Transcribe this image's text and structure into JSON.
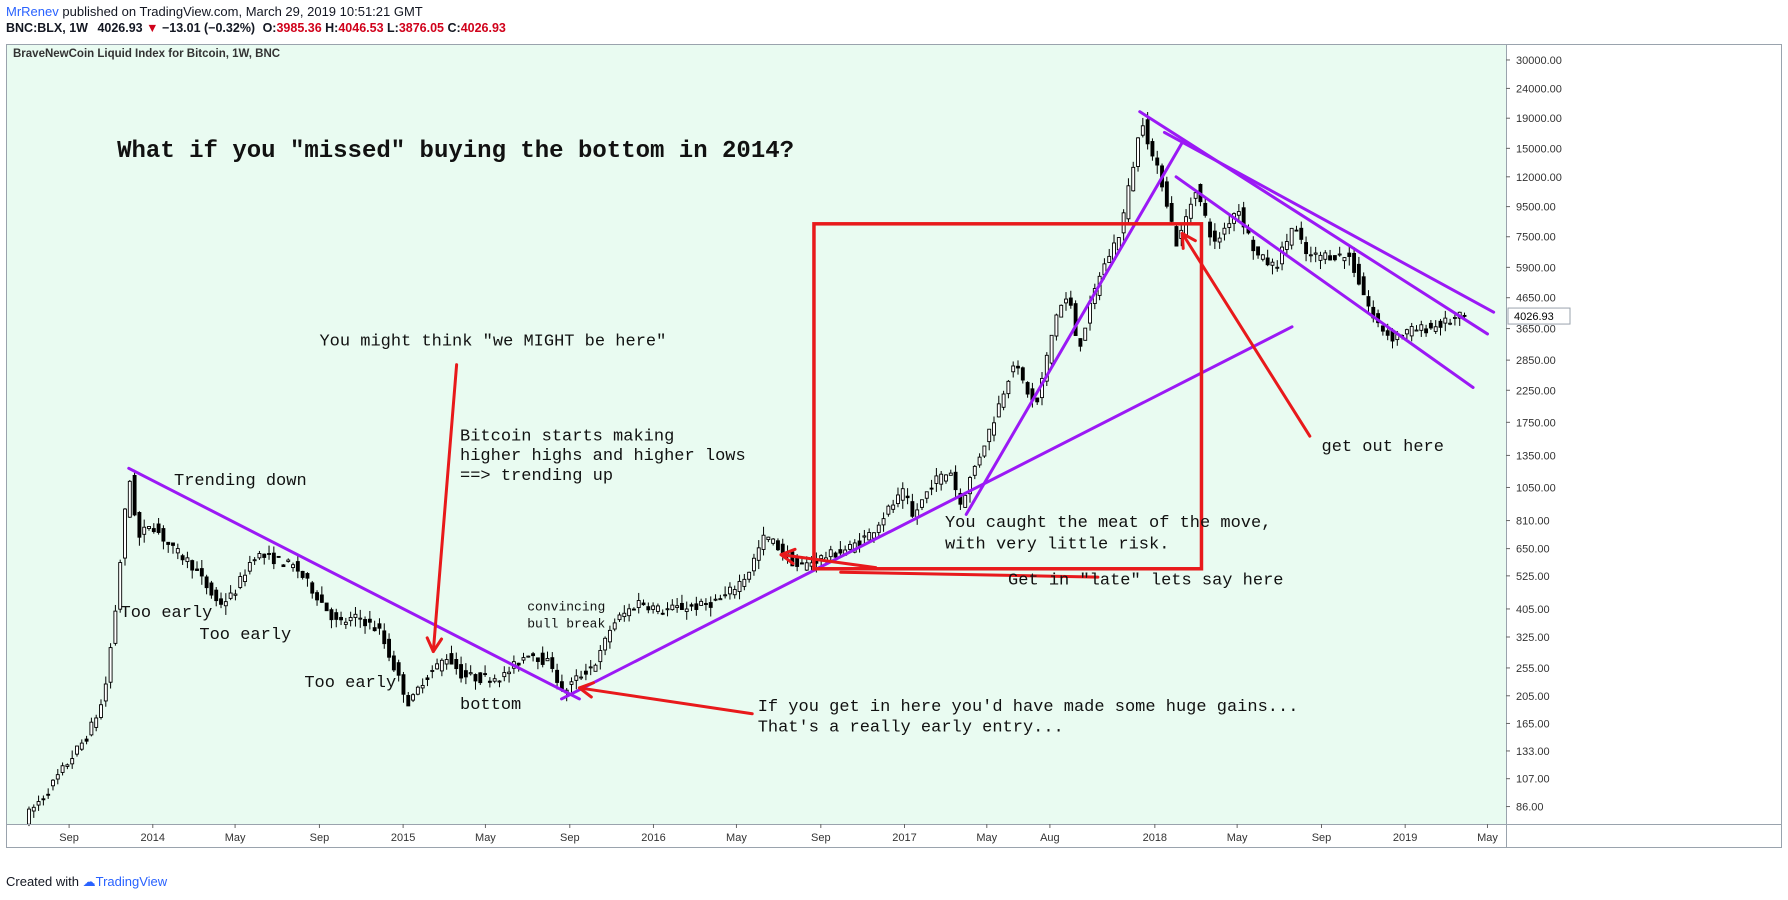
{
  "header": {
    "author": "MrRenev",
    "published": "published on TradingView.com, March 29, 2019 10:51:21 GMT",
    "symbol": "BNC:BLX, 1W",
    "last": "4026.93",
    "change": "−13.01 (−0.32%)",
    "o_label": "O:",
    "o_value": "3985.36",
    "h_label": "H:",
    "h_value": "4046.53",
    "l_label": "L:",
    "l_value": "3876.05",
    "c_label": "C:",
    "c_value": "4026.93"
  },
  "footer": {
    "created": "Created with",
    "brand": "TradingView"
  },
  "chart_data": {
    "type": "candlestick",
    "title": "BraveNewCoin Liquid Index for Bitcoin, 1W, BNC",
    "y_scale": "log",
    "ylim": [
      75,
      34000
    ],
    "price_label": "4026.93",
    "y_ticks": [
      "30000.00",
      "24000.00",
      "19000.00",
      "15000.00",
      "12000.00",
      "9500.00",
      "7500.00",
      "5900.00",
      "4650.00",
      "3650.00",
      "2850.00",
      "2250.00",
      "1750.00",
      "1350.00",
      "1050.00",
      "810.00",
      "650.00",
      "525.00",
      "405.00",
      "325.00",
      "255.00",
      "205.00",
      "165.00",
      "133.00",
      "107.00",
      "86.00"
    ],
    "x_ticks": [
      {
        "label": "Sep",
        "date": "2013-09-01"
      },
      {
        "label": "2014",
        "date": "2014-01-01"
      },
      {
        "label": "May",
        "date": "2014-05-01"
      },
      {
        "label": "Sep",
        "date": "2014-09-01"
      },
      {
        "label": "2015",
        "date": "2015-01-01"
      },
      {
        "label": "May",
        "date": "2015-05-01"
      },
      {
        "label": "Sep",
        "date": "2015-09-01"
      },
      {
        "label": "2016",
        "date": "2016-01-01"
      },
      {
        "label": "May",
        "date": "2016-05-01"
      },
      {
        "label": "Sep",
        "date": "2016-09-01"
      },
      {
        "label": "2017",
        "date": "2017-01-01"
      },
      {
        "label": "May",
        "date": "2017-05-01"
      },
      {
        "label": "Aug",
        "date": "2017-08-01"
      },
      {
        "label": "2018",
        "date": "2018-01-01"
      },
      {
        "label": "May",
        "date": "2018-05-01"
      },
      {
        "label": "Sep",
        "date": "2018-09-01"
      },
      {
        "label": "2019",
        "date": "2019-01-01"
      },
      {
        "label": "May",
        "date": "2019-05-01"
      }
    ],
    "price_path": [
      [
        "2013-07-01",
        78
      ],
      [
        "2013-08-01",
        95
      ],
      [
        "2013-09-01",
        120
      ],
      [
        "2013-10-01",
        150
      ],
      [
        "2013-10-25",
        200
      ],
      [
        "2013-11-10",
        380
      ],
      [
        "2013-11-24",
        820
      ],
      [
        "2013-12-01",
        1150
      ],
      [
        "2013-12-15",
        700
      ],
      [
        "2014-01-01",
        800
      ],
      [
        "2014-02-01",
        650
      ],
      [
        "2014-03-01",
        580
      ],
      [
        "2014-04-10",
        420
      ],
      [
        "2014-05-01",
        450
      ],
      [
        "2014-06-01",
        620
      ],
      [
        "2014-07-01",
        600
      ],
      [
        "2014-08-01",
        560
      ],
      [
        "2014-09-01",
        450
      ],
      [
        "2014-10-01",
        360
      ],
      [
        "2014-11-01",
        380
      ],
      [
        "2014-12-01",
        340
      ],
      [
        "2015-01-14",
        190
      ],
      [
        "2015-02-01",
        230
      ],
      [
        "2015-03-10",
        280
      ],
      [
        "2015-04-01",
        240
      ],
      [
        "2015-05-01",
        235
      ],
      [
        "2015-06-01",
        240
      ],
      [
        "2015-07-07",
        290
      ],
      [
        "2015-08-10",
        260
      ],
      [
        "2015-08-24",
        210
      ],
      [
        "2015-09-15",
        235
      ],
      [
        "2015-10-15",
        270
      ],
      [
        "2015-11-05",
        360
      ],
      [
        "2015-12-15",
        430
      ],
      [
        "2016-01-15",
        400
      ],
      [
        "2016-02-15",
        410
      ],
      [
        "2016-03-15",
        415
      ],
      [
        "2016-04-15",
        440
      ],
      [
        "2016-05-20",
        530
      ],
      [
        "2016-06-15",
        720
      ],
      [
        "2016-07-01",
        670
      ],
      [
        "2016-08-03",
        560
      ],
      [
        "2016-09-01",
        600
      ],
      [
        "2016-10-15",
        650
      ],
      [
        "2016-11-15",
        730
      ],
      [
        "2016-12-15",
        900
      ],
      [
        "2017-01-05",
        1020
      ],
      [
        "2017-01-15",
        820
      ],
      [
        "2017-02-15",
        1100
      ],
      [
        "2017-03-15",
        1200
      ],
      [
        "2017-03-25",
        900
      ],
      [
        "2017-04-15",
        1200
      ],
      [
        "2017-05-15",
        1800
      ],
      [
        "2017-06-12",
        2800
      ],
      [
        "2017-07-15",
        1950
      ],
      [
        "2017-08-15",
        4200
      ],
      [
        "2017-09-01",
        4700
      ],
      [
        "2017-09-15",
        3100
      ],
      [
        "2017-10-15",
        5500
      ],
      [
        "2017-11-15",
        7800
      ],
      [
        "2017-12-17",
        19000
      ],
      [
        "2018-01-01",
        14000
      ],
      [
        "2018-01-15",
        11500
      ],
      [
        "2018-02-06",
        7000
      ],
      [
        "2018-03-05",
        11000
      ],
      [
        "2018-04-01",
        7000
      ],
      [
        "2018-05-05",
        9500
      ],
      [
        "2018-06-01",
        6500
      ],
      [
        "2018-06-29",
        5900
      ],
      [
        "2018-07-25",
        8200
      ],
      [
        "2018-08-15",
        6400
      ],
      [
        "2018-09-15",
        6500
      ],
      [
        "2018-10-15",
        6400
      ],
      [
        "2018-11-20",
        3900
      ],
      [
        "2018-12-15",
        3400
      ],
      [
        "2019-01-15",
        3600
      ],
      [
        "2019-02-15",
        3700
      ],
      [
        "2019-03-29",
        4026.93
      ]
    ],
    "lines": [
      {
        "color": "#9b19f5",
        "from": [
          "2013-11-27",
          1220
        ],
        "to": [
          "2015-09-15",
          200
        ]
      },
      {
        "color": "#9b19f5",
        "from": [
          "2015-08-20",
          200
        ],
        "to": [
          "2018-07-20",
          3700
        ]
      },
      {
        "color": "#9b19f5",
        "from": [
          "2017-04-01",
          850
        ],
        "to": [
          "2018-02-12",
          16000
        ]
      },
      {
        "color": "#9b19f5",
        "from": [
          "2017-12-10",
          20000
        ],
        "to": [
          "2019-05-01",
          3500
        ]
      },
      {
        "color": "#9b19f5",
        "from": [
          "2018-01-15",
          17000
        ],
        "to": [
          "2019-05-10",
          4150
        ]
      },
      {
        "color": "#9b19f5",
        "from": [
          "2018-02-01",
          12000
        ],
        "to": [
          "2019-04-10",
          2300
        ]
      },
      {
        "color": "#e8191b",
        "from": [
          "2015-03-20",
          2750
        ],
        "to": [
          "2015-02-14",
          290
        ],
        "arrow": true
      },
      {
        "color": "#e8191b",
        "from": [
          "2016-11-20",
          560
        ],
        "to": [
          "2016-07-05",
          620
        ],
        "arrow": true
      },
      {
        "color": "#e8191b",
        "from": [
          "2016-09-30",
          540
        ],
        "to": [
          "2017-10-10",
          520
        ]
      },
      {
        "color": "#e8191b",
        "from": [
          "2016-05-24",
          178
        ],
        "to": [
          "2015-09-15",
          218
        ],
        "arrow": true
      },
      {
        "color": "#e8191b",
        "from": [
          "2018-08-15",
          1570
        ],
        "to": [
          "2018-02-10",
          7700
        ],
        "arrow": true
      }
    ],
    "box": {
      "color": "#e8191b",
      "from": [
        "2016-08-22",
        8300
      ],
      "to": [
        "2018-03-10",
        555
      ]
    },
    "annotations": [
      {
        "text": "What if you \"missed\" buying the bottom in 2014?",
        "date": "2013-11-10",
        "price": 14000,
        "size": 24,
        "bold": true
      },
      {
        "text": "You might think \"we MIGHT be here\"",
        "date": "2014-09-01",
        "price": 3200,
        "size": 17,
        "bold": false
      },
      {
        "text": "Bitcoin starts making",
        "date": "2015-03-25",
        "price": 1520,
        "size": 17,
        "bold": false
      },
      {
        "text": "higher highs and higher lows",
        "date": "2015-03-25",
        "price": 1300,
        "size": 17,
        "bold": false
      },
      {
        "text": "==> trending up",
        "date": "2015-03-25",
        "price": 1115,
        "size": 17,
        "bold": false
      },
      {
        "text": "Trending down",
        "date": "2014-02-01",
        "price": 1070,
        "size": 17,
        "bold": false
      },
      {
        "text": "Too early",
        "date": "2013-11-15",
        "price": 380,
        "size": 17,
        "bold": false
      },
      {
        "text": "Too early",
        "date": "2014-03-10",
        "price": 320,
        "size": 17,
        "bold": false
      },
      {
        "text": "Too early",
        "date": "2014-08-10",
        "price": 220,
        "size": 17,
        "bold": false
      },
      {
        "text": "convincing",
        "date": "2015-07-01",
        "price": 400,
        "size": 13,
        "bold": false
      },
      {
        "text": "bull break",
        "date": "2015-07-01",
        "price": 350,
        "size": 13,
        "bold": false
      },
      {
        "text": "bottom",
        "date": "2015-03-25",
        "price": 185,
        "size": 17,
        "bold": false
      },
      {
        "text": "You caught the meat of the move,",
        "date": "2017-03-01",
        "price": 770,
        "size": 17,
        "bold": false
      },
      {
        "text": "with very little risk.",
        "date": "2017-03-01",
        "price": 650,
        "size": 17,
        "bold": false
      },
      {
        "text": "Get in \"late\" lets say here",
        "date": "2017-06-01",
        "price": 490,
        "size": 17,
        "bold": false
      },
      {
        "text": "If you get in here you'd have made some huge gains...",
        "date": "2016-06-01",
        "price": 182,
        "size": 17,
        "bold": false
      },
      {
        "text": "That's a really early entry...",
        "date": "2016-06-01",
        "price": 155,
        "size": 17,
        "bold": false
      },
      {
        "text": "get out here",
        "date": "2018-09-01",
        "price": 1400,
        "size": 17,
        "bold": false
      }
    ]
  }
}
